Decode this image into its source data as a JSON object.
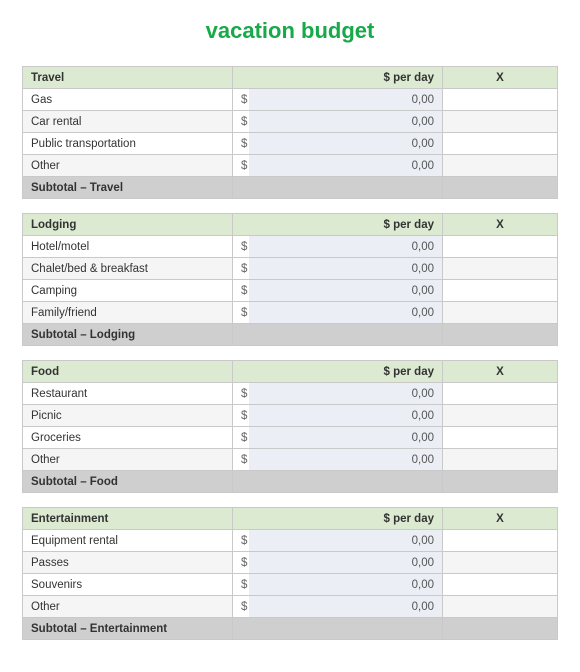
{
  "title": "vacation budget",
  "col_perday": "$ per day",
  "col_x": "X",
  "currency_symbol": "$",
  "zero_value": "0,00",
  "colors": {
    "title": "#18a94a",
    "header_bg": "#dcead2",
    "value_bg": "#eceef6",
    "subtotal_bg": "#cfcfcf",
    "alt_row_bg": "#f5f5f5",
    "border": "#c9c9c9",
    "background": "#ffffff"
  },
  "sections": [
    {
      "name": "Travel",
      "subtotal": "Subtotal – Travel",
      "rows": [
        "Gas",
        "Car rental",
        "Public transportation",
        "Other"
      ]
    },
    {
      "name": "Lodging",
      "subtotal": "Subtotal – Lodging",
      "rows": [
        "Hotel/motel",
        "Chalet/bed & breakfast",
        "Camping",
        "Family/friend"
      ]
    },
    {
      "name": "Food",
      "subtotal": "Subtotal – Food",
      "rows": [
        "Restaurant",
        "Picnic",
        "Groceries",
        "Other"
      ]
    },
    {
      "name": "Entertainment",
      "subtotal": "Subtotal – Entertainment",
      "rows": [
        "Equipment rental",
        "Passes",
        "Souvenirs",
        "Other"
      ]
    }
  ]
}
